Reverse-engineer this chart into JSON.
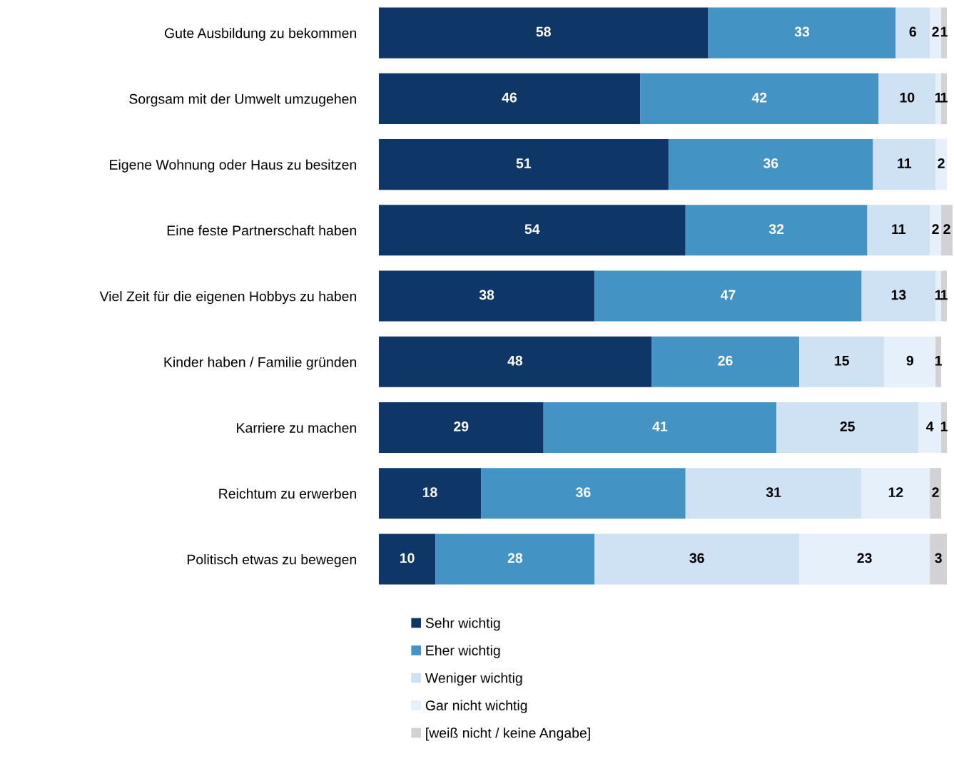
{
  "chart_data": {
    "type": "bar",
    "orientation": "horizontal",
    "stacked": true,
    "data_labels": true,
    "legend": "bottom",
    "grid": false,
    "categories": [
      "Gute Ausbildung zu bekommen",
      "Sorgsam mit der Umwelt umzugehen",
      "Eigene Wohnung oder Haus zu besitzen",
      "Eine feste Partnerschaft haben",
      "Viel Zeit für die eigenen Hobbys zu haben",
      "Kinder haben / Familie gründen",
      "Karriere zu machen",
      "Reichtum zu erwerben",
      "Politisch etwas zu bewegen"
    ],
    "series": [
      {
        "name": "Sehr wichtig",
        "color": "#0e3666",
        "values": [
          58,
          46,
          51,
          54,
          38,
          48,
          29,
          18,
          10
        ]
      },
      {
        "name": "Eher wichtig",
        "color": "#4394c4",
        "values": [
          33,
          42,
          36,
          32,
          47,
          26,
          41,
          36,
          28
        ]
      },
      {
        "name": "Weniger wichtig",
        "color": "#cfe2f3",
        "values": [
          6,
          10,
          11,
          11,
          13,
          15,
          25,
          31,
          36
        ]
      },
      {
        "name": "Gar nicht wichtig",
        "color": "#e5f0fa",
        "values": [
          2,
          1,
          2,
          2,
          1,
          9,
          4,
          12,
          23
        ]
      },
      {
        "name": "[weiß nicht / keine Angabe]",
        "color": "#d1d1d6",
        "values": [
          1,
          1,
          0,
          2,
          1,
          1,
          1,
          2,
          3
        ],
        "value_labels": [
          "1",
          "1",
          null,
          "2",
          "1",
          "1",
          "1",
          "2",
          "3"
        ]
      }
    ]
  }
}
